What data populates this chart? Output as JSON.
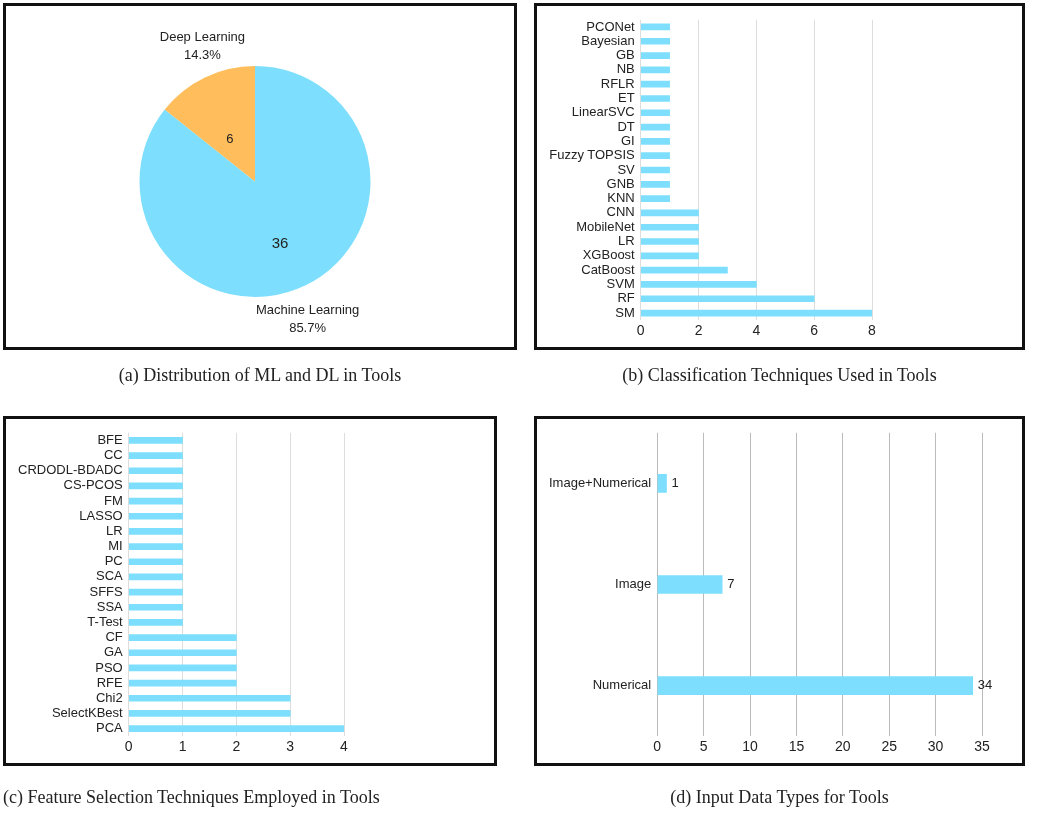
{
  "chart_data": [
    {
      "type": "pie",
      "title": "(a) Distribution of ML and DL in Tools",
      "categories": [
        "Machine Learning",
        "Deep Learning"
      ],
      "values": [
        36,
        6
      ],
      "colors": [
        "#7ddffd",
        "#ffbd5c"
      ],
      "data_labels": true,
      "annotations": [
        {
          "text": "85.7%",
          "x": "Machine Learning"
        },
        {
          "text": "14.3%",
          "x": "Deep Learning"
        }
      ]
    },
    {
      "type": "bar",
      "orientation": "horizontal",
      "title": "(b) Classification Techniques Used in Tools",
      "categories": [
        "PCONet",
        "Bayesian",
        "GB",
        "NB",
        "RFLR",
        "ET",
        "LinearSVC",
        "DT",
        "GI",
        "Fuzzy TOPSIS",
        "SV",
        "GNB",
        "KNN",
        "CNN",
        "MobileNet",
        "LR",
        "XGBoost",
        "CatBoost",
        "SVM",
        "RF",
        "SM"
      ],
      "values": [
        1,
        1,
        1,
        1,
        1,
        1,
        1,
        1,
        1,
        1,
        1,
        1,
        1,
        2,
        2,
        2,
        2,
        3,
        4,
        6,
        8
      ],
      "color": "#7ddffd",
      "xlim": [
        0,
        8
      ],
      "xticks": [
        0,
        2,
        4,
        6,
        8
      ],
      "grid": "x"
    },
    {
      "type": "bar",
      "orientation": "horizontal",
      "title": "(c) Feature Selection Techniques Employed in Tools",
      "categories": [
        "BFE",
        "CC",
        "CRDODL-BDADC",
        "CS-PCOS",
        "FM",
        "LASSO",
        "LR",
        "MI",
        "PC",
        "SCA",
        "SFFS",
        "SSA",
        "T-Test",
        "CF",
        "GA",
        "PSO",
        "RFE",
        "Chi2",
        "SelectKBest",
        "PCA"
      ],
      "values": [
        1,
        1,
        1,
        1,
        1,
        1,
        1,
        1,
        1,
        1,
        1,
        1,
        1,
        2,
        2,
        2,
        2,
        3,
        3,
        4
      ],
      "color": "#7ddffd",
      "xlim": [
        0,
        4
      ],
      "xticks": [
        0,
        1,
        2,
        3,
        4
      ],
      "grid": "x"
    },
    {
      "type": "bar",
      "orientation": "horizontal",
      "title": "(d) Input Data Types for Tools",
      "categories": [
        "Image+Numerical",
        "Image",
        "Numerical"
      ],
      "values": [
        1,
        7,
        34
      ],
      "color": "#7ddffd",
      "xlim": [
        0,
        35
      ],
      "xticks": [
        0,
        5,
        10,
        15,
        20,
        25,
        30,
        35
      ],
      "grid": "x",
      "data_labels": true
    }
  ]
}
